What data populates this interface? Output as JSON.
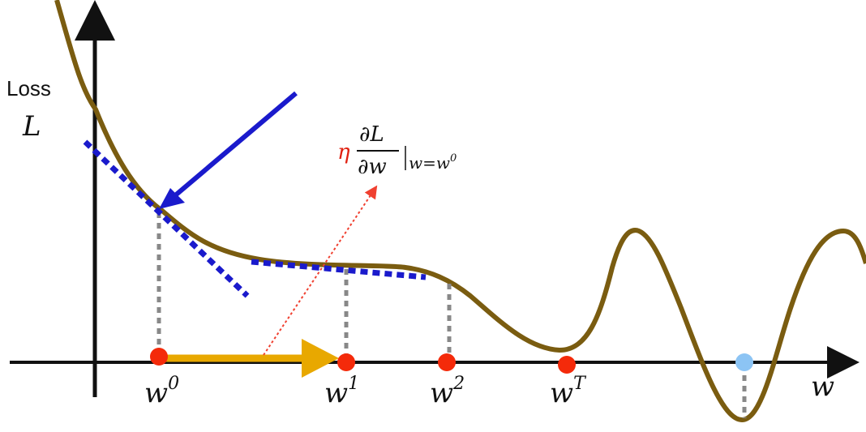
{
  "y_axis": {
    "label": "Loss",
    "symbol": "L"
  },
  "x_axis": {
    "symbol": "w"
  },
  "annotation": {
    "eta": "η",
    "numerator": "∂L",
    "denominator": "∂w",
    "condition": "w=w",
    "condition_sup": "0"
  },
  "points": [
    {
      "base": "w",
      "sup": "0"
    },
    {
      "base": "w",
      "sup": "1"
    },
    {
      "base": "w",
      "sup": "2"
    },
    {
      "base": "w",
      "sup": "T"
    }
  ]
}
